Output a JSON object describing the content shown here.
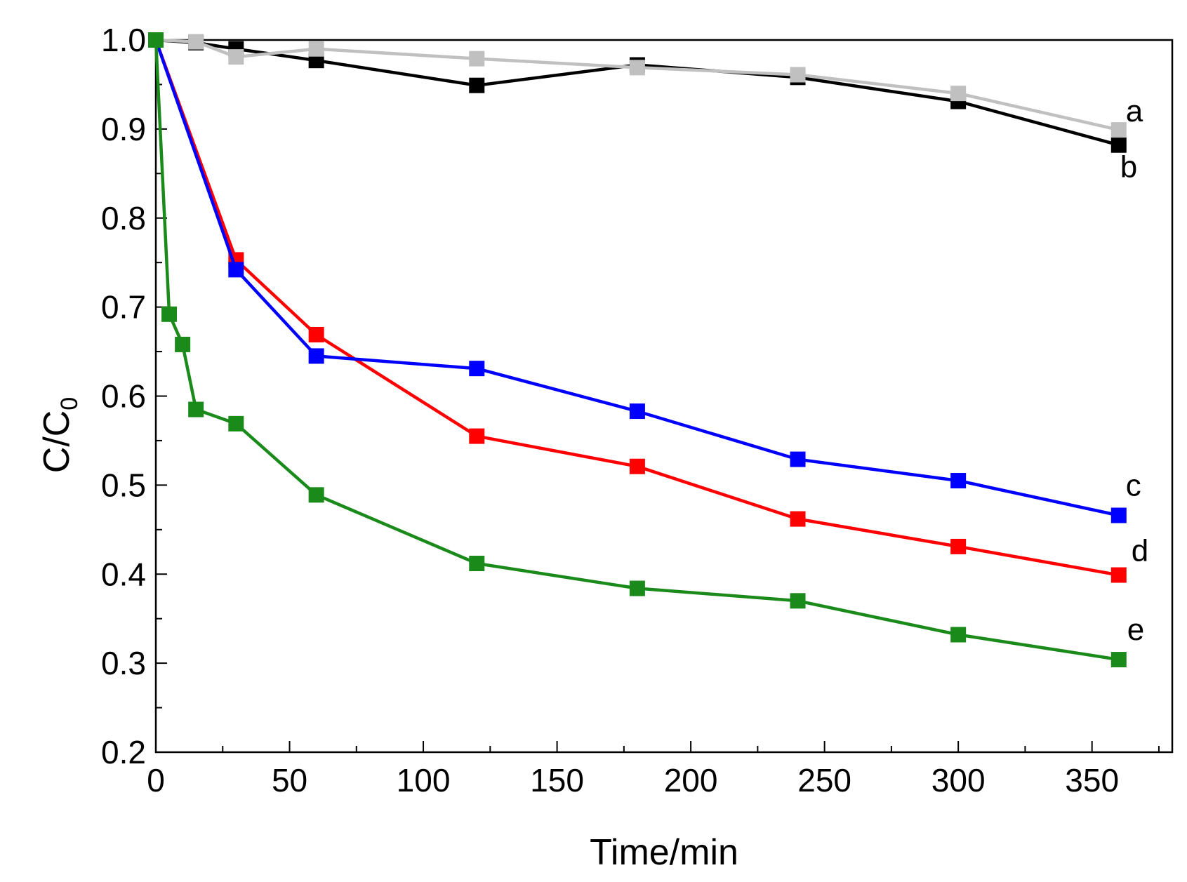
{
  "chart_data": {
    "type": "line",
    "title": "",
    "xlabel": "Time/min",
    "ylabel_main": "C/C",
    "ylabel_sub": "0",
    "xlim": [
      0,
      380
    ],
    "ylim": [
      0.2,
      1.0
    ],
    "x_ticks": [
      0,
      50,
      100,
      150,
      200,
      250,
      300,
      350
    ],
    "y_ticks": [
      0.2,
      0.3,
      0.4,
      0.5,
      0.6,
      0.7,
      0.8,
      0.9,
      1.0
    ],
    "x_tick_labels": [
      "0",
      "50",
      "100",
      "150",
      "200",
      "250",
      "300",
      "350"
    ],
    "y_tick_labels": [
      "0.2",
      "0.3",
      "0.4",
      "0.5",
      "0.6",
      "0.7",
      "0.8",
      "0.9",
      "1.0"
    ],
    "grid": false,
    "series": [
      {
        "name": "b",
        "color": "#000000",
        "x": [
          0,
          15,
          30,
          60,
          120,
          180,
          240,
          300,
          360
        ],
        "y": [
          1.0,
          0.997,
          0.99,
          0.977,
          0.949,
          0.972,
          0.958,
          0.931,
          0.882
        ]
      },
      {
        "name": "a",
        "color": "#c0c0c0",
        "x": [
          0,
          15,
          30,
          60,
          120,
          180,
          240,
          300,
          360
        ],
        "y": [
          1.0,
          0.998,
          0.981,
          0.99,
          0.979,
          0.969,
          0.961,
          0.94,
          0.899
        ]
      },
      {
        "name": "d",
        "color": "#ff0000",
        "x": [
          0,
          30,
          60,
          120,
          180,
          240,
          300,
          360
        ],
        "y": [
          1.0,
          0.753,
          0.669,
          0.555,
          0.521,
          0.462,
          0.431,
          0.399
        ]
      },
      {
        "name": "c",
        "color": "#0000ff",
        "x": [
          0,
          30,
          60,
          120,
          180,
          240,
          300,
          360
        ],
        "y": [
          1.0,
          0.742,
          0.645,
          0.631,
          0.583,
          0.529,
          0.505,
          0.466
        ]
      },
      {
        "name": "e",
        "color": "#1a8a1a",
        "x": [
          0,
          5,
          10,
          15,
          30,
          60,
          120,
          180,
          240,
          300,
          360
        ],
        "y": [
          1.0,
          0.692,
          0.658,
          0.585,
          0.569,
          0.489,
          0.412,
          0.384,
          0.37,
          0.332,
          0.304
        ]
      }
    ]
  }
}
